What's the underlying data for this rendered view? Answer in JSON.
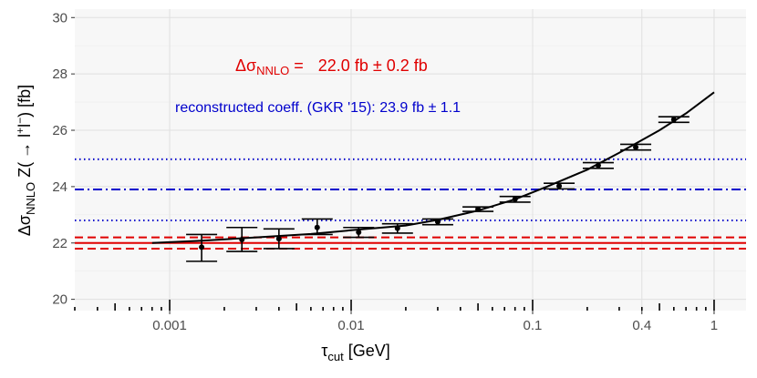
{
  "chart_data": {
    "type": "scatter",
    "xlabel": {
      "main": "τ",
      "sub": "cut",
      "rest": " [GeV]"
    },
    "ylabel": {
      "pre": "Δσ",
      "sub": "NNLO",
      "mid": " Z(",
      "arrow": "→",
      "post": " l",
      "sup1": "+",
      "l2": "l",
      "sup2": "−",
      "end": ") [fb]"
    },
    "x_scale": "log",
    "xlim": [
      0.0003,
      1.5
    ],
    "ylim": [
      19.6,
      30.3
    ],
    "grid": true,
    "x_ticks": [
      {
        "value": 0.001,
        "label": "0.001"
      },
      {
        "value": 0.01,
        "label": "0.01"
      },
      {
        "value": 0.1,
        "label": "0.1"
      },
      {
        "value": 0.4,
        "label": "0.4"
      },
      {
        "value": 1,
        "label": "1"
      }
    ],
    "y_ticks": [
      {
        "value": 20,
        "label": "20"
      },
      {
        "value": 22,
        "label": "22"
      },
      {
        "value": 24,
        "label": "24"
      },
      {
        "value": 26,
        "label": "26"
      },
      {
        "value": 28,
        "label": "28"
      },
      {
        "value": 30,
        "label": "30"
      }
    ],
    "points": [
      {
        "x": 0.0015,
        "y": 21.85,
        "ylo": 21.35,
        "yhi": 22.3
      },
      {
        "x": 0.0025,
        "y": 22.12,
        "ylo": 21.7,
        "yhi": 22.55
      },
      {
        "x": 0.004,
        "y": 22.15,
        "ylo": 21.8,
        "yhi": 22.5
      },
      {
        "x": 0.0065,
        "y": 22.55,
        "ylo": 22.3,
        "yhi": 22.85
      },
      {
        "x": 0.011,
        "y": 22.38,
        "ylo": 22.2,
        "yhi": 22.55
      },
      {
        "x": 0.018,
        "y": 22.52,
        "ylo": 22.35,
        "yhi": 22.68
      },
      {
        "x": 0.03,
        "y": 22.75,
        "ylo": 22.65,
        "yhi": 22.85
      },
      {
        "x": 0.05,
        "y": 23.2,
        "ylo": 23.12,
        "yhi": 23.28
      },
      {
        "x": 0.08,
        "y": 23.55,
        "ylo": 23.45,
        "yhi": 23.65
      },
      {
        "x": 0.14,
        "y": 24.02,
        "ylo": 23.92,
        "yhi": 24.12
      },
      {
        "x": 0.23,
        "y": 24.75,
        "ylo": 24.65,
        "yhi": 24.85
      },
      {
        "x": 0.37,
        "y": 25.4,
        "ylo": 25.3,
        "yhi": 25.5
      },
      {
        "x": 0.6,
        "y": 26.38,
        "ylo": 26.28,
        "yhi": 26.48
      }
    ],
    "fit_curve": {
      "x": [
        0.0008,
        0.0015,
        0.003,
        0.006,
        0.01,
        0.02,
        0.03,
        0.05,
        0.08,
        0.12,
        0.2,
        0.3,
        0.5,
        0.7,
        1.0
      ],
      "y": [
        22.0,
        22.08,
        22.2,
        22.32,
        22.45,
        22.62,
        22.82,
        23.15,
        23.55,
        24.0,
        24.6,
        25.2,
        26.0,
        26.6,
        27.35
      ]
    },
    "hlines": [
      {
        "y": 24.97,
        "color": "#0000cc",
        "style": "dotted"
      },
      {
        "y": 23.9,
        "color": "#0000cc",
        "style": "dashdot"
      },
      {
        "y": 22.8,
        "color": "#0000cc",
        "style": "dotted"
      },
      {
        "y": 22.2,
        "color": "#e00000",
        "style": "dashed"
      },
      {
        "y": 22.0,
        "color": "#e00000",
        "style": "solid"
      },
      {
        "y": 21.8,
        "color": "#e00000",
        "style": "dashed"
      }
    ],
    "annotations": {
      "nnlo": {
        "pre": "Δσ",
        "sub": "NNLO",
        "eq": " =",
        "value": "22.0 fb ± 0.2 fb",
        "color": "#e00000"
      },
      "reconstructed": {
        "text": "reconstructed coeff. (GKR '15): 23.9 fb ± 1.1",
        "color": "#0000cc"
      }
    },
    "colors": {
      "panel": "#f7f7f7",
      "grid_major": "#e0e0e0",
      "grid_minor": "#ececec",
      "points": "#000000"
    }
  }
}
